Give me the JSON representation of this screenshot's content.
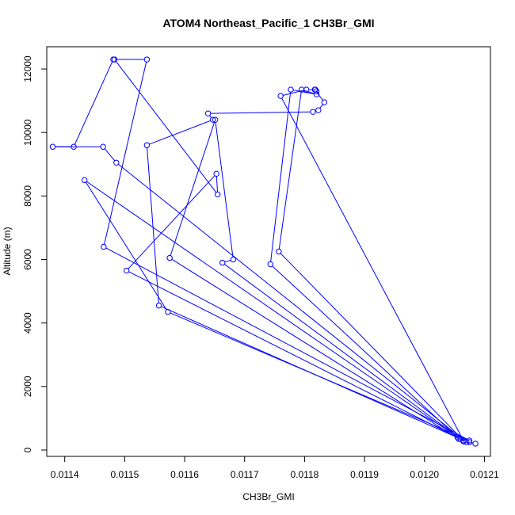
{
  "chart_data": {
    "type": "line",
    "title": "ATOM4 Northeast_Pacific_1 CH3Br_GMI",
    "xlabel": "CH3Br_GMI",
    "ylabel": "Altitude (m)",
    "xlim": [
      0.01137,
      0.01211
    ],
    "ylim": [
      -200,
      12700
    ],
    "x_ticks": [
      0.0114,
      0.0115,
      0.0116,
      0.0117,
      0.0118,
      0.0119,
      0.012,
      0.0121
    ],
    "x_tick_labels": [
      "0.0114",
      "0.0115",
      "0.0116",
      "0.0117",
      "0.0118",
      "0.0119",
      "0.0120",
      "0.0121"
    ],
    "y_ticks": [
      0,
      2000,
      4000,
      6000,
      8000,
      10000,
      12000
    ],
    "y_tick_labels": [
      "0",
      "2000",
      "4000",
      "6000",
      "8000",
      "10000",
      "12000"
    ],
    "grid": false,
    "legend": "none",
    "series_color": "#0000ff",
    "series": [
      {
        "x": [
          0.012085,
          0.012075,
          0.012065,
          0.012057,
          0.011575,
          0.011651,
          0.011681,
          0.011663,
          0.01206,
          0.011557,
          0.011537,
          0.011647,
          0.011639,
          0.011814,
          0.011823,
          0.011833,
          0.011817,
          0.01182,
          0.011818,
          0.011803,
          0.01176,
          0.012065,
          0.011757,
          0.011795,
          0.01182,
          0.011777,
          0.011743,
          0.012055,
          0.011433,
          0.011572,
          0.012075,
          0.011465,
          0.011537,
          0.011481,
          0.011415,
          0.01138,
          0.011464,
          0.011486,
          0.01207,
          0.011503,
          0.011653,
          0.011655,
          0.011483
        ],
        "y": [
          200,
          250,
          270,
          350,
          6050,
          10400,
          6000,
          5900,
          350,
          4550,
          9600,
          10400,
          10600,
          10650,
          10700,
          10950,
          11350,
          11300,
          11350,
          11350,
          11150,
          300,
          6250,
          11350,
          11200,
          11350,
          5850,
          400,
          8500,
          4350,
          300,
          6400,
          12300,
          12300,
          9550,
          9550,
          9550,
          9050,
          250,
          5650,
          8700,
          8050,
          12300
        ]
      }
    ]
  }
}
